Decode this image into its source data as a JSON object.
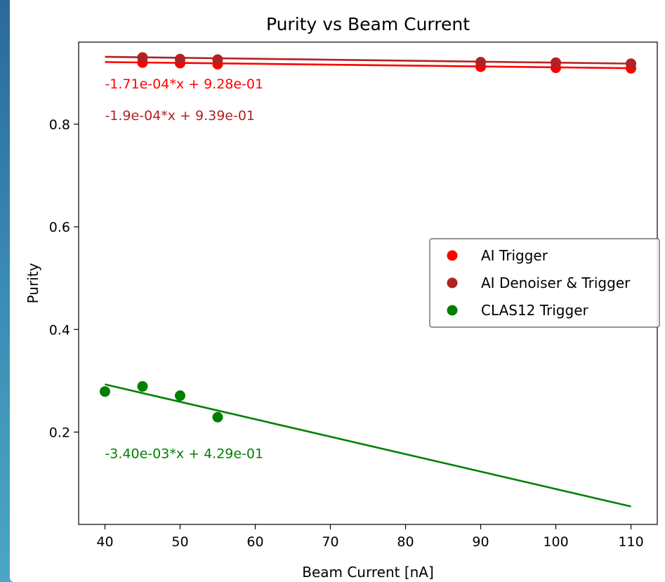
{
  "chart_data": {
    "type": "scatter",
    "title": "Purity vs Beam Current",
    "xlabel": "Beam Current [nA]",
    "ylabel": "Purity",
    "xlim": [
      36.5,
      113.5
    ],
    "ylim": [
      0.02,
      0.96
    ],
    "x_ticks": [
      40,
      50,
      60,
      70,
      80,
      90,
      100,
      110
    ],
    "y_ticks": [
      0.2,
      0.4,
      0.6,
      0.8
    ],
    "grid": false,
    "legend_position": "center-right",
    "series": [
      {
        "name": "AI Trigger",
        "color": "#ff0000",
        "x": [
          45,
          50,
          55,
          90,
          100,
          110
        ],
        "y": [
          0.92,
          0.919,
          0.917,
          0.912,
          0.91,
          0.909
        ],
        "fit": {
          "slope": -0.000171,
          "intercept": 0.928,
          "x_range": [
            40,
            110
          ]
        },
        "fit_label": "-1.71e-04*x + 9.28e-01"
      },
      {
        "name": "AI Denoiser & Trigger",
        "color": "#b22222",
        "x": [
          45,
          50,
          55,
          90,
          100,
          110
        ],
        "y": [
          0.93,
          0.927,
          0.926,
          0.921,
          0.92,
          0.918
        ],
        "fit": {
          "slope": -0.00019,
          "intercept": 0.939,
          "x_range": [
            40,
            110
          ]
        },
        "fit_label": "-1.9e-04*x + 9.39e-01"
      },
      {
        "name": "CLAS12 Trigger",
        "color": "#008000",
        "x": [
          40,
          45,
          50,
          55
        ],
        "y": [
          0.279,
          0.289,
          0.271,
          0.229
        ],
        "fit": {
          "slope": -0.0034,
          "intercept": 0.429,
          "x_range": [
            40,
            110
          ]
        },
        "fit_label": "-3.40e-03*x + 4.29e-01"
      }
    ],
    "annotations": [
      {
        "series": 0,
        "x": 40,
        "y": 0.87
      },
      {
        "series": 1,
        "x": 40,
        "y": 0.808
      },
      {
        "series": 2,
        "x": 40,
        "y": 0.149
      }
    ]
  }
}
